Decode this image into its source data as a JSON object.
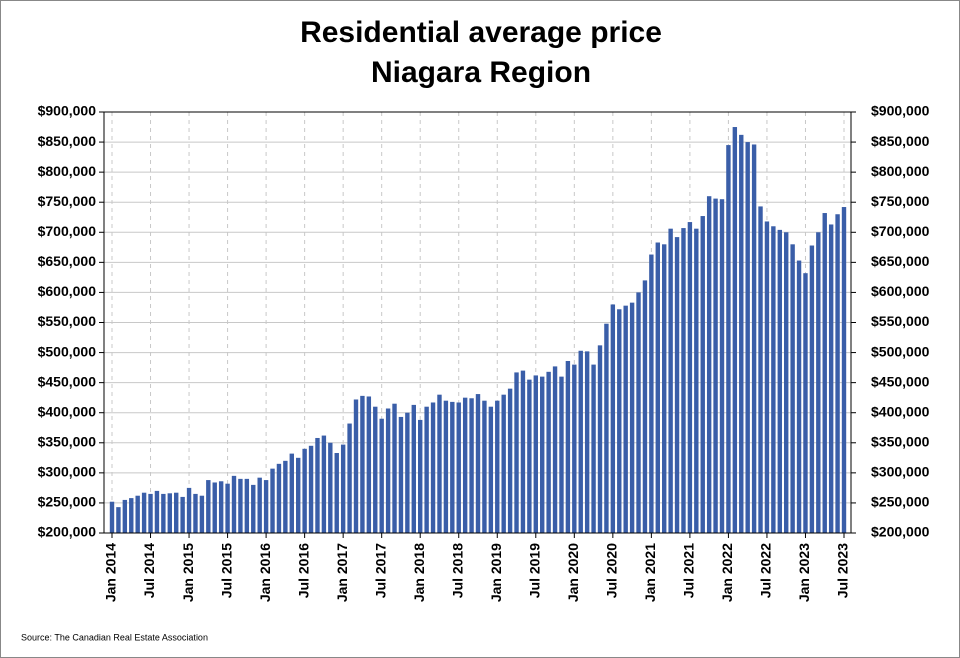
{
  "chart_data": {
    "type": "bar",
    "title": "Residential average price",
    "subtitle": "Niagara Region",
    "source": "Source: The Canadian Real Estate Association",
    "color": "#3a5ea8",
    "grid": true,
    "categories": [
      "Jan 2014",
      null,
      null,
      null,
      null,
      null,
      "Jul 2014",
      null,
      null,
      null,
      null,
      null,
      "Jan 2015",
      null,
      null,
      null,
      null,
      null,
      "Jul 2015",
      null,
      null,
      null,
      null,
      null,
      "Jan 2016",
      null,
      null,
      null,
      null,
      null,
      "Jul 2016",
      null,
      null,
      null,
      null,
      null,
      "Jan 2017",
      null,
      null,
      null,
      null,
      null,
      "Jul 2017",
      null,
      null,
      null,
      null,
      null,
      "Jan 2018",
      null,
      null,
      null,
      null,
      null,
      "Jul 2018",
      null,
      null,
      null,
      null,
      null,
      "Jan 2019",
      null,
      null,
      null,
      null,
      null,
      "Jul 2019",
      null,
      null,
      null,
      null,
      null,
      "Jan 2020",
      null,
      null,
      null,
      null,
      null,
      "Jul 2020",
      null,
      null,
      null,
      null,
      null,
      "Jan 2021",
      null,
      null,
      null,
      null,
      null,
      "Jul 2021",
      null,
      null,
      null,
      null,
      null,
      "Jan 2022",
      null,
      null,
      null,
      null,
      null,
      "Jul 2022",
      null,
      null,
      null,
      null,
      null,
      "Jan 2023",
      null,
      null,
      null,
      null,
      null,
      "Jul 2023"
    ],
    "values": [
      252000,
      243000,
      255000,
      258000,
      262000,
      267000,
      265000,
      270000,
      265000,
      266000,
      267000,
      260000,
      275000,
      265000,
      262000,
      288000,
      284000,
      286000,
      282000,
      295000,
      290000,
      290000,
      280000,
      292000,
      288000,
      307000,
      315000,
      320000,
      332000,
      325000,
      340000,
      345000,
      358000,
      362000,
      350000,
      333000,
      347000,
      382000,
      422000,
      428000,
      427000,
      410000,
      390000,
      407000,
      415000,
      393000,
      400000,
      413000,
      388000,
      410000,
      417000,
      430000,
      420000,
      418000,
      417000,
      425000,
      424000,
      431000,
      420000,
      410000,
      420000,
      430000,
      440000,
      467000,
      470000,
      455000,
      462000,
      460000,
      468000,
      477000,
      460000,
      486000,
      480000,
      503000,
      502000,
      480000,
      512000,
      548000,
      580000,
      572000,
      578000,
      583000,
      600000,
      620000,
      663000,
      683000,
      680000,
      706000,
      692000,
      707000,
      717000,
      706000,
      727000,
      760000,
      756000,
      755000,
      845000,
      875000,
      862000,
      850000,
      846000,
      743000,
      718000,
      710000,
      704000,
      700000,
      680000,
      653000,
      632000,
      678000,
      700000,
      732000,
      713000,
      730000,
      742000
    ],
    "ylim": [
      200000,
      900000
    ],
    "yticks": [
      {
        "value": 200000,
        "label": "$200,000"
      },
      {
        "value": 250000,
        "label": "$250,000"
      },
      {
        "value": 300000,
        "label": "$300,000"
      },
      {
        "value": 350000,
        "label": "$350,000"
      },
      {
        "value": 400000,
        "label": "$400,000"
      },
      {
        "value": 450000,
        "label": "$450,000"
      },
      {
        "value": 500000,
        "label": "$500,000"
      },
      {
        "value": 550000,
        "label": "$550,000"
      },
      {
        "value": 600000,
        "label": "$600,000"
      },
      {
        "value": 650000,
        "label": "$650,000"
      },
      {
        "value": 700000,
        "label": "$700,000"
      },
      {
        "value": 750000,
        "label": "$750,000"
      },
      {
        "value": 800000,
        "label": "$800,000"
      },
      {
        "value": 850000,
        "label": "$850,000"
      },
      {
        "value": 900000,
        "label": "$900,000"
      }
    ],
    "y2lim": [
      200000,
      900000
    ],
    "y2ticks": [
      {
        "value": 200000,
        "label": "$200,000"
      },
      {
        "value": 250000,
        "label": "$250,000"
      },
      {
        "value": 300000,
        "label": "$300,000"
      },
      {
        "value": 350000,
        "label": "$350,000"
      },
      {
        "value": 400000,
        "label": "$400,000"
      },
      {
        "value": 450000,
        "label": "$450,000"
      },
      {
        "value": 500000,
        "label": "$500,000"
      },
      {
        "value": 550000,
        "label": "$550,000"
      },
      {
        "value": 600000,
        "label": "$600,000"
      },
      {
        "value": 650000,
        "label": "$650,000"
      },
      {
        "value": 700000,
        "label": "$700,000"
      },
      {
        "value": 750000,
        "label": "$750,000"
      },
      {
        "value": 800000,
        "label": "$800,000"
      },
      {
        "value": 850000,
        "label": "$850,000"
      },
      {
        "value": 900000,
        "label": "$900,000"
      }
    ]
  }
}
